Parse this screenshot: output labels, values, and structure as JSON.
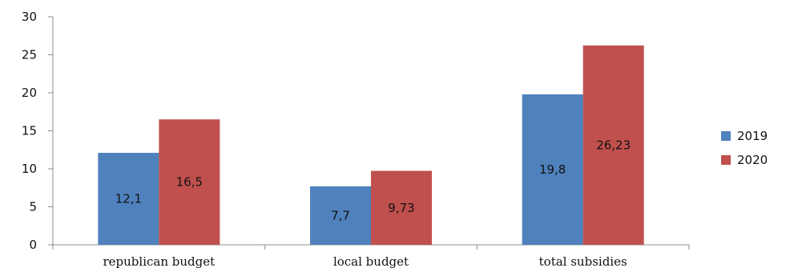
{
  "chart_data": {
    "type": "bar",
    "categories": [
      "republican budget",
      "local budget",
      "total subsidies"
    ],
    "series": [
      {
        "name": "2019",
        "values": [
          12.1,
          7.7,
          19.8
        ],
        "labels": [
          "12,1",
          "7,7",
          "19,8"
        ],
        "color": "#4f81bd"
      },
      {
        "name": "2020",
        "values": [
          16.5,
          9.73,
          26.23
        ],
        "labels": [
          "16,5",
          "9,73",
          "26,23"
        ],
        "color": "#c0504d"
      }
    ],
    "ylim": [
      0,
      30
    ],
    "yticks": [
      0,
      5,
      10,
      15,
      20,
      25,
      30
    ],
    "ytick_labels": [
      "0",
      "5",
      "10",
      "15",
      "20",
      "25",
      "30"
    ],
    "grid": false,
    "legend_position": "right"
  }
}
